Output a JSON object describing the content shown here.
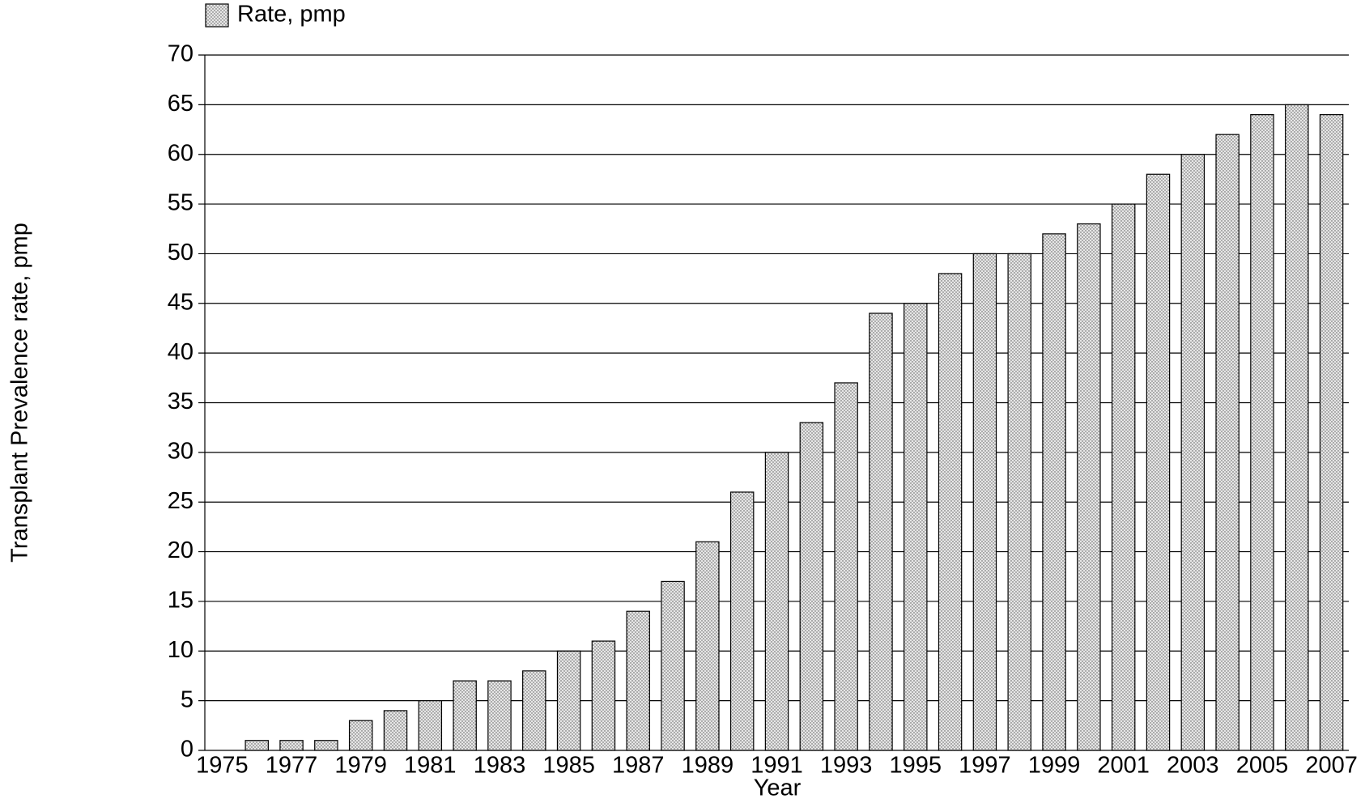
{
  "chart_data": {
    "type": "bar",
    "x_label": "Year",
    "y_label": "Transplant Prevalence rate, pmp",
    "categories": [
      "1975",
      null,
      "1977",
      null,
      "1979",
      null,
      "1981",
      null,
      "1983",
      null,
      "1985",
      null,
      "1987",
      null,
      "1989",
      null,
      "1991",
      null,
      "1993",
      null,
      "1995",
      null,
      "1997",
      null,
      "1999",
      null,
      "2001",
      null,
      "2003",
      null,
      "2005",
      null,
      "2007"
    ],
    "series": [
      {
        "name": "Rate, pmp",
        "color": "#e6e6e6",
        "values": [
          0,
          1,
          1,
          1,
          3,
          4,
          5,
          7,
          7,
          8,
          10,
          11,
          14,
          17,
          21,
          26,
          30,
          33,
          37,
          44,
          45,
          48,
          50,
          50,
          52,
          53,
          55,
          58,
          60,
          62,
          64,
          65,
          64
        ]
      }
    ],
    "ylim": [
      0,
      70
    ],
    "yticks": [
      0,
      5,
      10,
      15,
      20,
      25,
      30,
      35,
      40,
      45,
      50,
      55,
      60,
      65,
      70
    ],
    "grid": true,
    "legend": "top-left"
  }
}
